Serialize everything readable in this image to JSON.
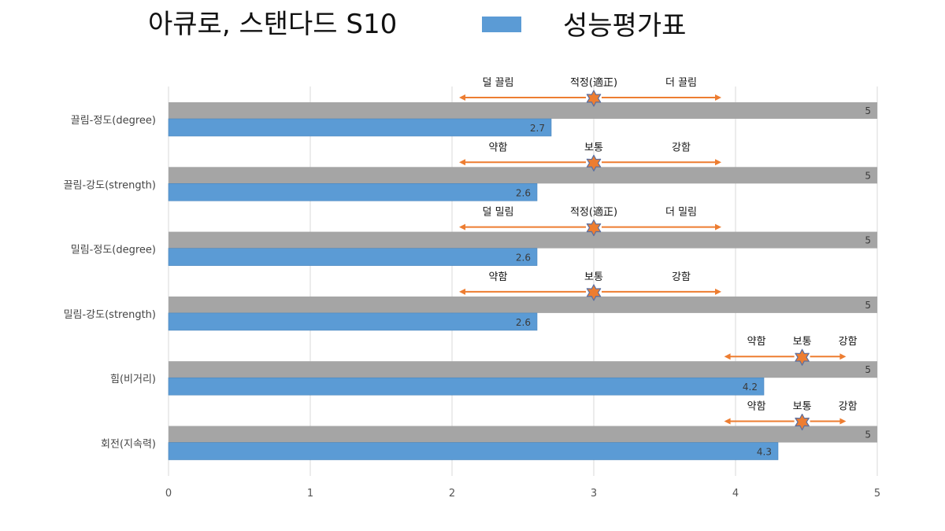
{
  "chart_data": {
    "type": "bar",
    "orientation": "horizontal",
    "title": "아큐로, 스탠다드 S10",
    "legend_position": "top",
    "grid": true,
    "xlim": [
      0,
      5
    ],
    "x_ticks": [
      "0",
      "1",
      "2",
      "3",
      "4",
      "5"
    ],
    "categories": [
      "끌림-정도(degree)",
      "끌림-강도(strength)",
      "밀림-정도(degree)",
      "밀림-강도(strength)",
      "힘(비거리)",
      "회전(지속력)"
    ],
    "series": [
      {
        "name": "",
        "color": "#a5a5a5",
        "values": [
          5,
          5,
          5,
          5,
          5,
          5
        ]
      },
      {
        "name": "성능평가표",
        "color": "#5b9bd5",
        "values": [
          2.7,
          2.6,
          2.6,
          2.6,
          4.2,
          4.3
        ]
      }
    ],
    "annotations": [
      {
        "center": 3,
        "arrow_start": 2.05,
        "arrow_end": 3.9,
        "left": "덜 끌림",
        "middle": "적정(適正)",
        "right": "더 끌림"
      },
      {
        "center": 3,
        "arrow_start": 2.05,
        "arrow_end": 3.9,
        "left": "약함",
        "middle": "보통",
        "right": "강함"
      },
      {
        "center": 3,
        "arrow_start": 2.05,
        "arrow_end": 3.9,
        "left": "덜 밀림",
        "middle": "적정(適正)",
        "right": "더 밀림"
      },
      {
        "center": 3,
        "arrow_start": 2.05,
        "arrow_end": 3.9,
        "left": "약함",
        "middle": "보통",
        "right": "강함"
      },
      {
        "center": 4.47,
        "arrow_start": 3.92,
        "arrow_end": 4.78,
        "left": "약함",
        "middle": "보통",
        "right": "강함"
      },
      {
        "center": 4.47,
        "arrow_start": 3.92,
        "arrow_end": 4.78,
        "left": "약함",
        "middle": "보통",
        "right": "강함"
      }
    ],
    "annotation_color": "#ed7d31"
  }
}
